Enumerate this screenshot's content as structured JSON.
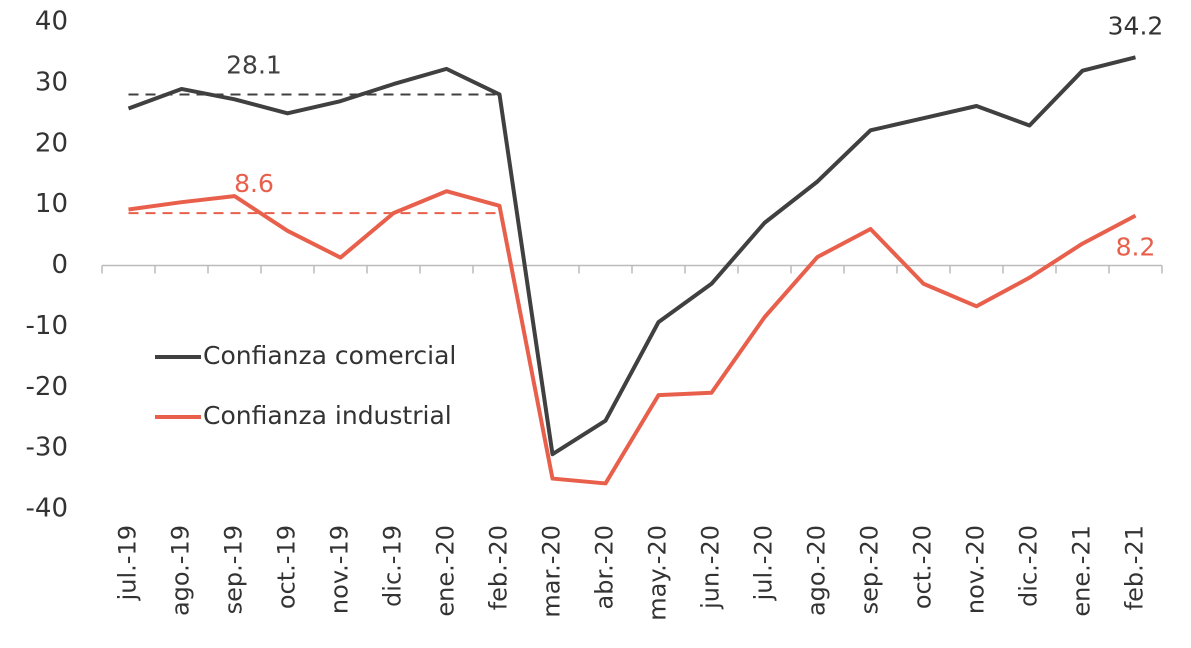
{
  "chart_data": {
    "type": "line",
    "categories": [
      "jul.-19",
      "ago.-19",
      "sep.-19",
      "oct.-19",
      "nov.-19",
      "dic.-19",
      "ene.-20",
      "feb.-20",
      "mar.-20",
      "abr.-20",
      "may.-20",
      "jun.-20",
      "jul.-20",
      "ago.-20",
      "sep.-20",
      "oct.-20",
      "nov.-20",
      "dic.-20",
      "ene.-21",
      "feb.-21"
    ],
    "series": [
      {
        "name": "Confianza comercial",
        "color": "#404040",
        "values": [
          25.8,
          29,
          27.3,
          25,
          27,
          29.8,
          32.3,
          28.1,
          -31,
          -25.5,
          -9.3,
          -3,
          7,
          13.8,
          22.2,
          24.2,
          26.2,
          23,
          32,
          34.2
        ]
      },
      {
        "name": "Confianza industrial",
        "color": "#e8604c",
        "values": [
          9.2,
          10.4,
          11.4,
          5.7,
          1.3,
          8.6,
          12.2,
          9.8,
          -35,
          -35.8,
          -21.3,
          -20.9,
          -8.5,
          1.4,
          6,
          -3,
          -6.7,
          -2,
          3.6,
          8.2
        ]
      }
    ],
    "reference_lines": [
      {
        "value": 28.1,
        "color": "#404040",
        "start": "jul.-19",
        "end": "feb.-20"
      },
      {
        "value": 8.6,
        "color": "#e8604c",
        "start": "jul.-19",
        "end": "feb.-20"
      }
    ],
    "ylim": [
      -40,
      40
    ],
    "yticks": [
      -40,
      -30,
      -20,
      -10,
      0,
      10,
      20,
      30,
      40
    ],
    "grid": false,
    "legend": "left"
  }
}
